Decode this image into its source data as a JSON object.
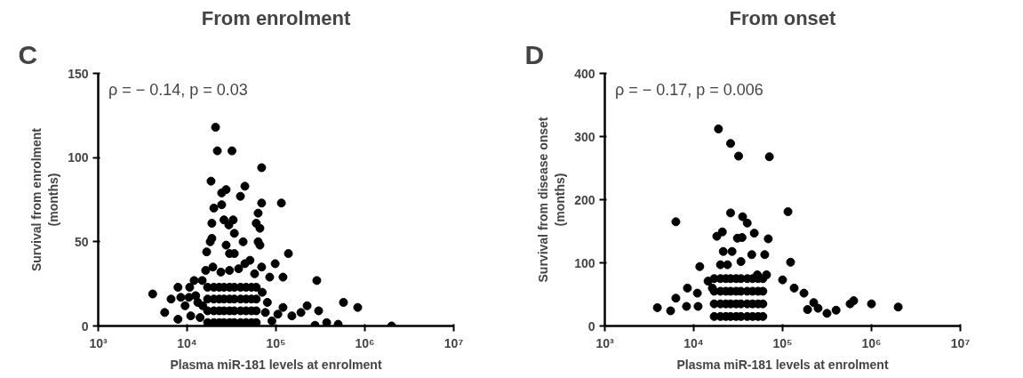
{
  "chart_data": [
    {
      "type": "scatter",
      "title": "From enrolment",
      "xlabel": "Plasma miR-181 levels at enrolment",
      "ylabel": "Survival from enrolment\n(months)",
      "log": "x",
      "marker": "circle",
      "xlim": [
        1000,
        10000000
      ],
      "xticks": [
        {
          "value": 1000,
          "label": "10³"
        },
        {
          "value": 10000,
          "label": "10⁴"
        },
        {
          "value": 100000,
          "label": "10⁵"
        },
        {
          "value": 1000000,
          "label": "10⁶"
        },
        {
          "value": 10000000,
          "label": "10⁷"
        }
      ],
      "ylim": [
        0,
        150
      ],
      "yticks": [
        0,
        50,
        100,
        150
      ],
      "annotations": [
        "C",
        "ρ = − 0.14, p = 0.03"
      ],
      "series": [
        {
          "color": "#000000",
          "x": [
            20900,
            21900,
            32000,
            69000,
            18600,
            44700,
            24500,
            27500,
            39800,
            69000,
            115000,
            20000,
            24500,
            63000,
            19000,
            26000,
            33000,
            60000,
            66000,
            29500,
            34000,
            19000,
            18200,
            42700,
            63000,
            66000,
            27500,
            16600,
            30000,
            34000,
            138000,
            51000,
            44700,
            69000,
            98000,
            19500,
            16200,
            24000,
            30000,
            38000,
            12000,
            14800,
            120000,
            85000,
            57500,
            288000,
            4100,
            7900,
            6600,
            8500,
            10500,
            9500,
            5600,
            7900,
            10700,
            13200,
            575000,
            832000,
            224000,
            302000,
            275000,
            372000,
            501000,
            2000000,
            120000,
            151000,
            191000,
            76000,
            105000,
            17000,
            20000,
            23000,
            26000,
            30000,
            34000,
            40000,
            46000,
            53000,
            60000,
            17000,
            20000,
            23000,
            26000,
            30000,
            34000,
            40000,
            46000,
            53000,
            60000,
            17000,
            20000,
            23000,
            26000,
            30000,
            34000,
            40000,
            46000,
            53000,
            60000,
            17000,
            20000,
            23000,
            26000,
            30000,
            34000,
            40000,
            46000,
            53000,
            60000,
            14000,
            15000,
            12500,
            70000,
            80000,
            90000,
            11000
          ],
          "values": [
            118,
            104,
            104,
            94,
            86,
            83,
            79,
            81,
            77,
            73,
            73,
            70,
            72,
            67,
            61,
            63,
            63,
            61,
            58,
            60,
            55,
            52,
            50,
            50,
            50,
            48,
            48,
            44,
            43,
            43,
            43,
            39,
            37,
            35,
            37,
            35,
            33,
            32,
            33,
            34,
            27,
            27,
            29,
            29,
            31,
            27,
            19,
            23,
            16,
            17,
            17,
            12,
            8,
            4,
            23,
            14,
            14,
            11,
            12,
            9,
            0.4,
            2,
            1,
            0,
            11,
            6,
            8,
            8,
            7,
            2,
            2,
            2,
            2,
            2,
            2,
            2,
            2,
            2,
            2,
            9,
            9,
            9,
            9,
            9,
            9,
            9,
            9,
            9,
            9,
            16,
            16,
            16,
            16,
            16,
            16,
            16,
            16,
            16,
            16,
            23,
            23,
            23,
            23,
            23,
            23,
            23,
            23,
            23,
            23,
            5,
            12,
            18,
            20,
            14,
            3,
            6
          ]
        }
      ]
    },
    {
      "type": "scatter",
      "title": "From onset",
      "xlabel": "Plasma miR-181 levels at enrolment",
      "ylabel": "Survival from disease onset\n(months)",
      "log": "x",
      "marker": "circle",
      "xlim": [
        1000,
        10000000
      ],
      "xticks": [
        {
          "value": 1000,
          "label": "10³"
        },
        {
          "value": 10000,
          "label": "10⁴"
        },
        {
          "value": 100000,
          "label": "10⁵"
        },
        {
          "value": 1000000,
          "label": "10⁶"
        },
        {
          "value": 10000000,
          "label": "10⁷"
        }
      ],
      "ylim": [
        0,
        400
      ],
      "yticks": [
        0,
        100,
        200,
        300,
        400
      ],
      "annotations": [
        "D",
        "ρ = − 0.17, p = 0.006"
      ],
      "series": [
        {
          "color": "#000000",
          "x": [
            19000,
            26000,
            32000,
            71000,
            6300,
            115000,
            26000,
            35500,
            40000,
            18200,
            21000,
            31000,
            35000,
            48000,
            69000,
            123000,
            21500,
            27000,
            45000,
            63000,
            34000,
            11700,
            20000,
            24000,
            100000,
            135000,
            174000,
            224000,
            191000,
            3900,
            5500,
            6300,
            8500,
            11000,
            8300,
            11200,
            14500,
            16200,
            66000,
            52000,
            575000,
            631000,
            316000,
            251000,
            2000000,
            400000,
            1000000,
            17000,
            20000,
            23000,
            26000,
            30000,
            34000,
            40000,
            46000,
            53000,
            60000,
            17000,
            20000,
            23000,
            26000,
            30000,
            34000,
            40000,
            46000,
            53000,
            60000,
            17000,
            20000,
            23000,
            26000,
            30000,
            34000,
            40000,
            46000,
            53000,
            60000,
            17000,
            20000,
            23000,
            26000,
            30000,
            34000,
            40000,
            46000,
            53000,
            60000
          ],
          "values": [
            312,
            289,
            269,
            268,
            165,
            181,
            179,
            173,
            163,
            142,
            149,
            139,
            140,
            147,
            138,
            101,
            118,
            118,
            113,
            113,
            102,
            94,
            97,
            97,
            73,
            60,
            52,
            37,
            26,
            29,
            24,
            44,
            60,
            52,
            31,
            31,
            71,
            60,
            81,
            81,
            35,
            40,
            20,
            28,
            30,
            25,
            35,
            15,
            15,
            15,
            15,
            15,
            15,
            15,
            15,
            15,
            15,
            35,
            35,
            35,
            35,
            35,
            35,
            35,
            35,
            35,
            35,
            55,
            55,
            55,
            55,
            55,
            55,
            55,
            55,
            55,
            55,
            75,
            75,
            75,
            75,
            75,
            75,
            75,
            75,
            75,
            75
          ]
        }
      ]
    }
  ]
}
